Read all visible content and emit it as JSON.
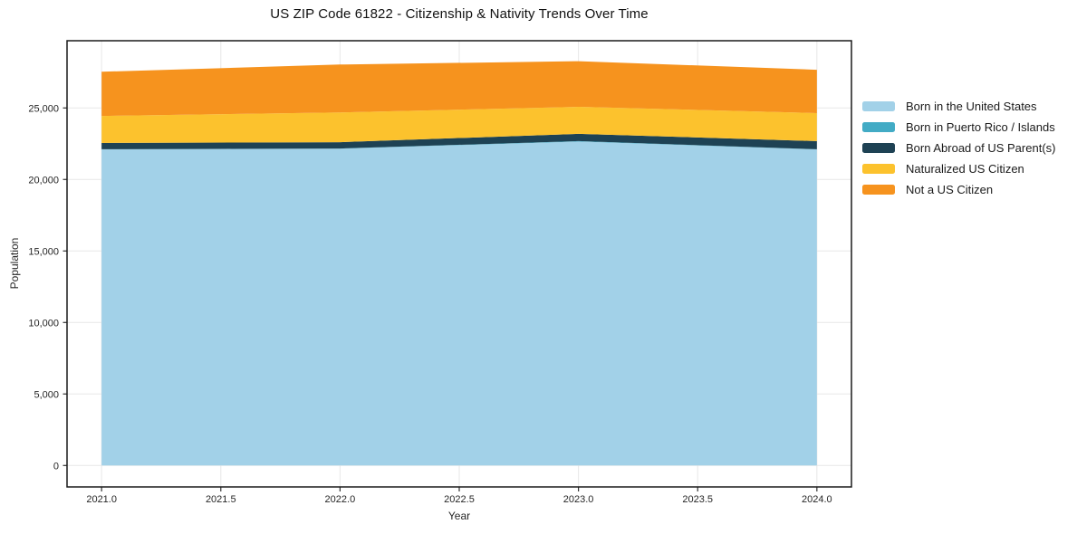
{
  "title": "US ZIP Code 61822 - Citizenship & Nativity Trends Over Time",
  "chart_data": {
    "type": "area",
    "stacked": true,
    "title": "US ZIP Code 61822 - Citizenship & Nativity Trends Over Time",
    "xlabel": "Year",
    "ylabel": "Population",
    "x": [
      2021,
      2022,
      2023,
      2024
    ],
    "series": [
      {
        "name": "Born in the United States",
        "color": "#a2d1e8",
        "values": [
          22100,
          22150,
          22650,
          22100
        ]
      },
      {
        "name": "Born in Puerto Rico / Islands",
        "color": "#42abc5",
        "values": [
          10,
          15,
          30,
          10
        ]
      },
      {
        "name": "Born Abroad of US Parent(s)",
        "color": "#1e4254",
        "values": [
          440,
          440,
          510,
          570
        ]
      },
      {
        "name": "Naturalized US Citizen",
        "color": "#fcc22d",
        "values": [
          1890,
          2080,
          1890,
          1960
        ]
      },
      {
        "name": "Not a US Citizen",
        "color": "#f6931e",
        "values": [
          3090,
          3350,
          3190,
          3030
        ]
      }
    ],
    "x_tick_labels": [
      "2021.0",
      "2021.5",
      "2022.0",
      "2022.5",
      "2023.0",
      "2023.5",
      "2024.0"
    ],
    "x_tick_values": [
      2021,
      2021.5,
      2022,
      2022.5,
      2023,
      2023.5,
      2024
    ],
    "y_tick_labels": [
      "0",
      "5,000",
      "10,000",
      "15,000",
      "20,000",
      "25,000"
    ],
    "y_tick_values": [
      0,
      5000,
      10000,
      15000,
      20000,
      25000
    ],
    "xlim": [
      2020.855,
      2024.145
    ],
    "ylim": [
      -1500,
      29700
    ],
    "grid": true,
    "legend_position": "right-outside"
  },
  "colors": {
    "background": "#ffffff",
    "grid": "#e7e7e7",
    "spine": "#1a1a1a",
    "tick": "#333333",
    "tick_text": "#262626"
  }
}
